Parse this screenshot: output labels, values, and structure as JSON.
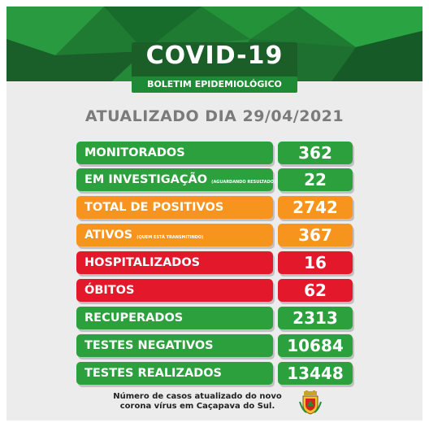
{
  "header": {
    "title": "COVID-19",
    "subtitle": "BOLETIM EPIDEMIOLÓGICO"
  },
  "date_line": "ATUALIZADO DIA 29/04/2021",
  "rows": [
    {
      "label": "MONITORADOS",
      "note": "",
      "value": "362",
      "color": "green"
    },
    {
      "label": "EM INVESTIGAÇÃO",
      "note": "(AGUARDANDO RESULTADO)",
      "value": "22",
      "color": "green"
    },
    {
      "label": "TOTAL DE POSITIVOS",
      "note": "",
      "value": "2742",
      "color": "orange"
    },
    {
      "label": "ATIVOS",
      "note": "(QUEM ESTÁ TRANSMITINDO)",
      "value": "367",
      "color": "orange"
    },
    {
      "label": "HOSPITALIZADOS",
      "note": "",
      "value": "16",
      "color": "red"
    },
    {
      "label": "ÓBITOS",
      "note": "",
      "value": "62",
      "color": "red"
    },
    {
      "label": "RECUPERADOS",
      "note": "",
      "value": "2313",
      "color": "green"
    },
    {
      "label": "TESTES NEGATIVOS",
      "note": "",
      "value": "10684",
      "color": "green"
    },
    {
      "label": "TESTES REALIZADOS",
      "note": "",
      "value": "13448",
      "color": "green"
    }
  ],
  "footer": {
    "line1": "Número de casos atualizado do novo",
    "line2": "corona vírus em Caçapava do Sul."
  },
  "colors": {
    "green": "#2ca03d",
    "orange": "#f7941d",
    "red": "#e3192b",
    "header_dark": "#1b5e27"
  },
  "icons": {
    "crest": "municipal-coat-of-arms-icon"
  }
}
